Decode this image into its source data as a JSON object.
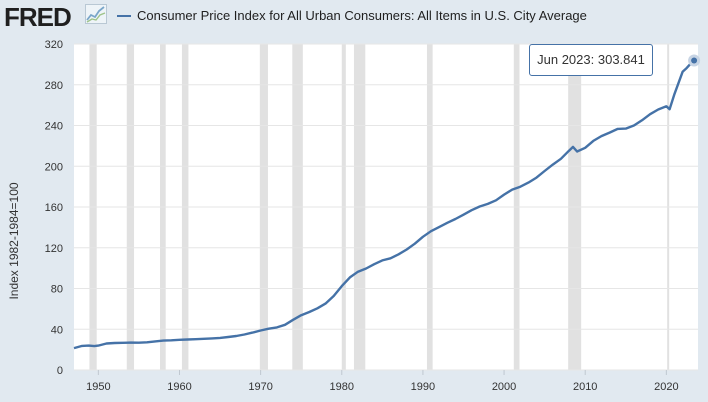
{
  "header": {
    "logo": "FRED",
    "legend_label": "Consumer Price Index for All Urban Consumers: All Items in U.S. City Average"
  },
  "tooltip": {
    "date": "Jun 2023:",
    "value": "303.841"
  },
  "colors": {
    "background": "#e1e9f0",
    "plot_background": "#ffffff",
    "series": "#4572a7",
    "recession": "#e1e1e1",
    "grid": "#e6e6e6"
  },
  "chart_data": {
    "type": "line",
    "title": "Consumer Price Index for All Urban Consumers: All Items in U.S. City Average",
    "ylabel": "Index 1982-1984=100",
    "xlabel": "",
    "ylim": [
      0,
      320
    ],
    "xlim": [
      1947,
      2023.9
    ],
    "yticks": [
      "0",
      "40",
      "80",
      "120",
      "160",
      "200",
      "240",
      "280",
      "320"
    ],
    "xticks": [
      "1950",
      "1960",
      "1970",
      "1980",
      "1990",
      "2000",
      "2010",
      "2020"
    ],
    "grid": true,
    "recessions": [
      [
        1948.9,
        1949.8
      ],
      [
        1953.5,
        1954.4
      ],
      [
        1957.6,
        1958.3
      ],
      [
        1960.3,
        1961.1
      ],
      [
        1969.9,
        1970.9
      ],
      [
        1973.9,
        1975.2
      ],
      [
        1980.0,
        1980.5
      ],
      [
        1981.5,
        1982.9
      ],
      [
        1990.5,
        1991.2
      ],
      [
        2001.2,
        2001.9
      ],
      [
        2007.9,
        2009.5
      ],
      [
        2020.1,
        2020.3
      ]
    ],
    "series": [
      {
        "name": "Consumer Price Index for All Urban Consumers: All Items in U.S. City Average",
        "x": [
          1947,
          1948,
          1948.8,
          1949.5,
          1950,
          1951,
          1952,
          1953,
          1954,
          1955,
          1956,
          1957,
          1958,
          1959,
          1960,
          1961,
          1962,
          1963,
          1964,
          1965,
          1966,
          1967,
          1968,
          1969,
          1970,
          1971,
          1972,
          1973,
          1974,
          1975,
          1976,
          1977,
          1978,
          1979,
          1980,
          1981,
          1982,
          1983,
          1984,
          1985,
          1986,
          1987,
          1988,
          1989,
          1990,
          1991,
          1992,
          1993,
          1994,
          1995,
          1996,
          1997,
          1998,
          1999,
          2000,
          2001,
          2002,
          2003,
          2004,
          2005,
          2006,
          2007,
          2008,
          2008.5,
          2009,
          2010,
          2011,
          2012,
          2013,
          2014,
          2015,
          2016,
          2017,
          2018,
          2019,
          2020,
          2020.4,
          2021,
          2022,
          2022.5,
          2023,
          2023.42
        ],
        "values": [
          21.5,
          23.7,
          24.0,
          23.5,
          24.0,
          26.0,
          26.5,
          26.7,
          26.9,
          26.8,
          27.2,
          28.1,
          28.9,
          29.2,
          29.6,
          29.9,
          30.2,
          30.6,
          31.0,
          31.5,
          32.4,
          33.4,
          34.8,
          36.7,
          38.8,
          40.5,
          41.8,
          44.4,
          49.3,
          53.8,
          56.9,
          60.6,
          65.2,
          72.6,
          82.4,
          90.9,
          96.5,
          99.6,
          103.9,
          107.6,
          109.6,
          113.6,
          118.3,
          124.0,
          130.7,
          136.2,
          140.3,
          144.5,
          148.2,
          152.4,
          156.9,
          160.5,
          163.0,
          166.6,
          172.2,
          177.1,
          179.9,
          184.0,
          188.9,
          195.3,
          201.6,
          207.3,
          215.3,
          219.0,
          214.5,
          218.1,
          224.9,
          229.6,
          233.0,
          236.7,
          237.0,
          240.0,
          245.1,
          251.1,
          255.7,
          258.8,
          256.0,
          271.0,
          292.7,
          296.3,
          300.8,
          303.841
        ]
      }
    ]
  }
}
